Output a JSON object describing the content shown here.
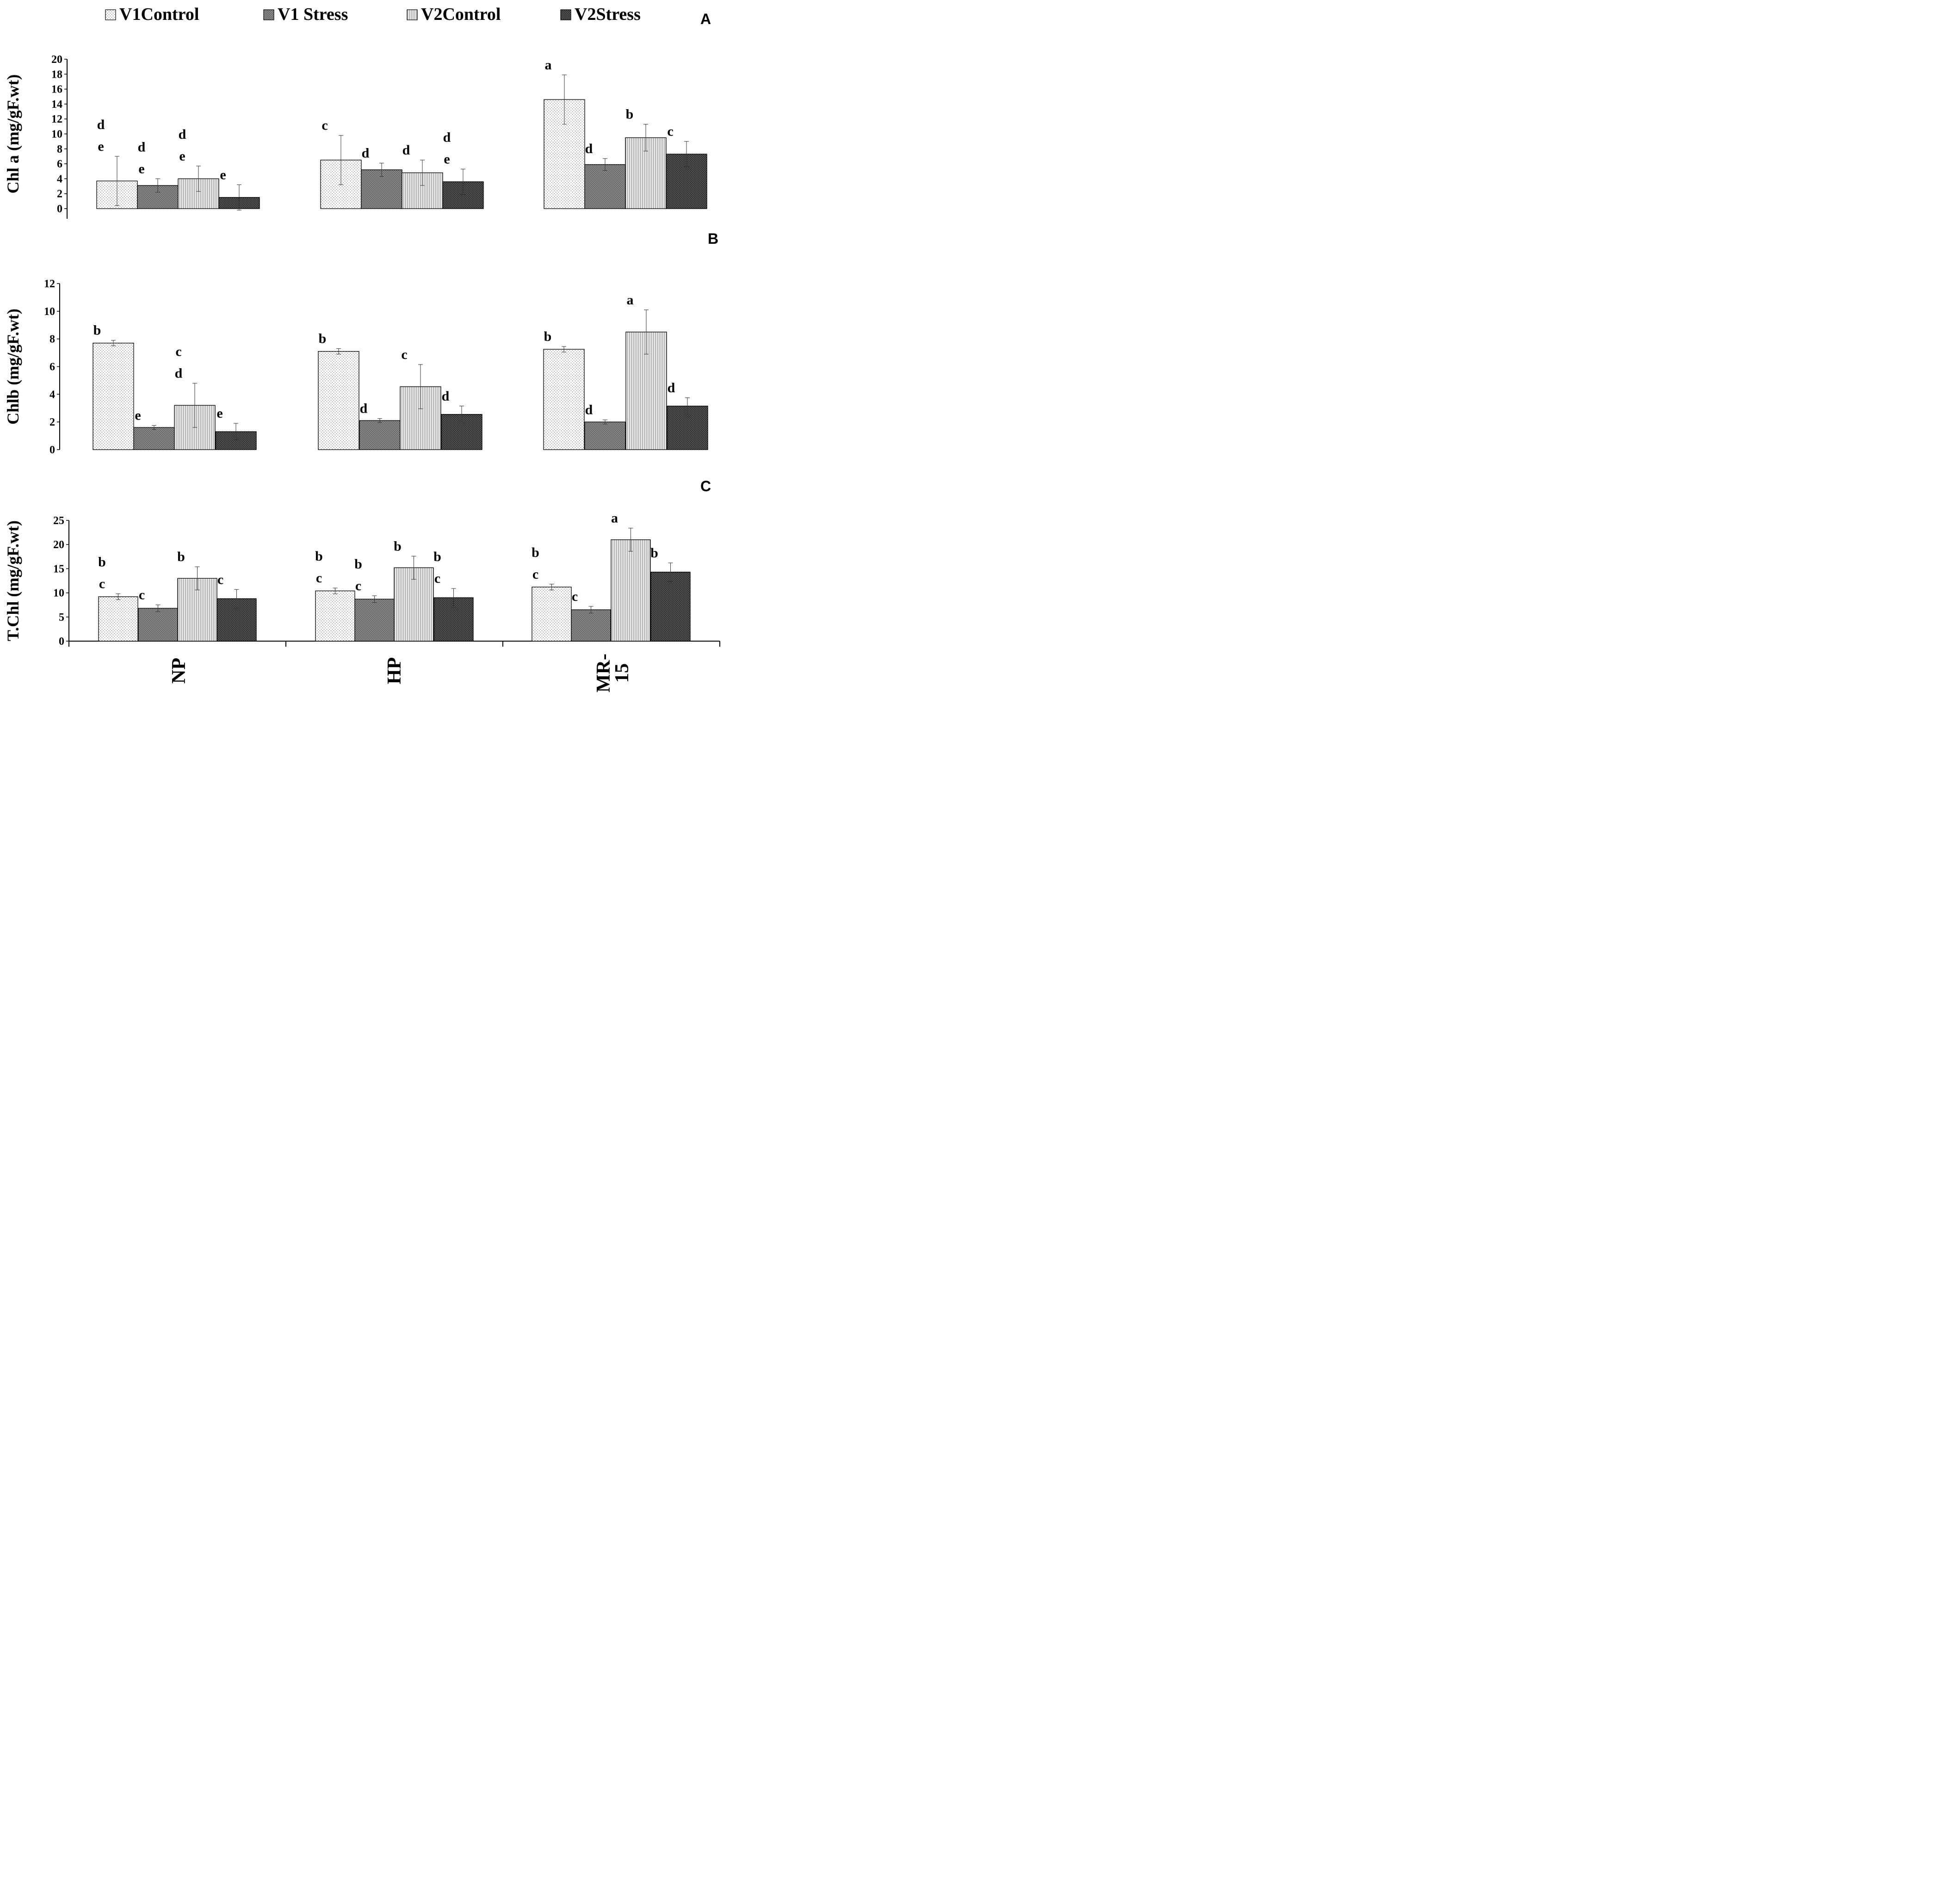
{
  "legend": {
    "items": [
      {
        "label": "V1Control",
        "pattern": "dots"
      },
      {
        "label": "V1 Stress",
        "pattern": "checker"
      },
      {
        "label": "V2Control",
        "pattern": "vlines"
      },
      {
        "label": "V2Stress",
        "pattern": "dark"
      }
    ]
  },
  "chart_data": [
    {
      "type": "bar",
      "panel": "A",
      "ylabel": "Chl a (mg/gF.wt)",
      "ylim": [
        0,
        20
      ],
      "yticks": [
        0,
        2,
        4,
        6,
        8,
        10,
        12,
        14,
        16,
        18,
        20
      ],
      "categories": [
        "NP",
        "HP",
        "MR-15"
      ],
      "series": [
        {
          "name": "V1Control",
          "values": [
            3.7,
            6.5,
            14.6
          ],
          "errors": [
            3.3,
            3.3,
            3.3
          ],
          "letters": [
            "d e",
            "c",
            "a"
          ]
        },
        {
          "name": "V1 Stress",
          "values": [
            3.1,
            5.2,
            5.9
          ],
          "errors": [
            0.9,
            0.9,
            0.8
          ],
          "letters": [
            "d e",
            "d",
            "d"
          ]
        },
        {
          "name": "V2Control",
          "values": [
            4.0,
            4.8,
            9.5
          ],
          "errors": [
            1.7,
            1.7,
            1.8
          ],
          "letters": [
            "d e",
            "d",
            "b"
          ]
        },
        {
          "name": "V2Stress",
          "values": [
            1.5,
            3.6,
            7.3
          ],
          "errors": [
            1.7,
            1.7,
            1.7
          ],
          "letters": [
            "e",
            "d e",
            "c"
          ]
        }
      ]
    },
    {
      "type": "bar",
      "panel": "B",
      "ylabel": "Chlb (mg/gF.wt)",
      "ylim": [
        0,
        12
      ],
      "yticks": [
        0,
        2,
        4,
        6,
        8,
        10,
        12
      ],
      "categories": [
        "NP",
        "HP",
        "MR-15"
      ],
      "series": [
        {
          "name": "V1Control",
          "values": [
            7.7,
            7.1,
            7.25
          ],
          "errors": [
            0.2,
            0.2,
            0.2
          ],
          "letters": [
            "b",
            "b",
            "b"
          ]
        },
        {
          "name": "V1 Stress",
          "values": [
            1.6,
            2.1,
            2.0
          ],
          "errors": [
            0.15,
            0.15,
            0.15
          ],
          "letters": [
            "e",
            "d",
            "d"
          ]
        },
        {
          "name": "V2Control",
          "values": [
            3.2,
            4.55,
            8.5
          ],
          "errors": [
            1.6,
            1.6,
            1.6
          ],
          "letters": [
            "c d",
            "c",
            "a"
          ]
        },
        {
          "name": "V2Stress",
          "values": [
            1.3,
            2.55,
            3.15
          ],
          "errors": [
            0.6,
            0.6,
            0.6
          ],
          "letters": [
            "e",
            "d",
            "d"
          ]
        }
      ]
    },
    {
      "type": "bar",
      "panel": "C",
      "ylabel": "T.Chl (mg/gF.wt)",
      "ylim": [
        0,
        25
      ],
      "yticks": [
        0,
        5,
        10,
        15,
        20,
        25
      ],
      "categories": [
        "NP",
        "HP",
        "MR-15"
      ],
      "series": [
        {
          "name": "V1Control",
          "values": [
            9.2,
            10.4,
            11.2
          ],
          "errors": [
            0.6,
            0.6,
            0.6
          ],
          "letters": [
            "b c",
            "b c",
            "b c"
          ]
        },
        {
          "name": "V1 Stress",
          "values": [
            6.8,
            8.7,
            6.5
          ],
          "errors": [
            0.7,
            0.7,
            0.7
          ],
          "letters": [
            "c",
            "b c",
            "c"
          ]
        },
        {
          "name": "V2Control",
          "values": [
            13.0,
            15.2,
            21.0
          ],
          "errors": [
            2.4,
            2.4,
            2.4
          ],
          "letters": [
            "b",
            "b",
            "a"
          ]
        },
        {
          "name": "V2Stress",
          "values": [
            8.8,
            9.0,
            14.3
          ],
          "errors": [
            1.9,
            1.9,
            1.9
          ],
          "letters": [
            "c",
            "b c",
            "b"
          ]
        }
      ]
    }
  ],
  "x_labels": [
    "NP",
    "HP",
    "MR-15"
  ]
}
